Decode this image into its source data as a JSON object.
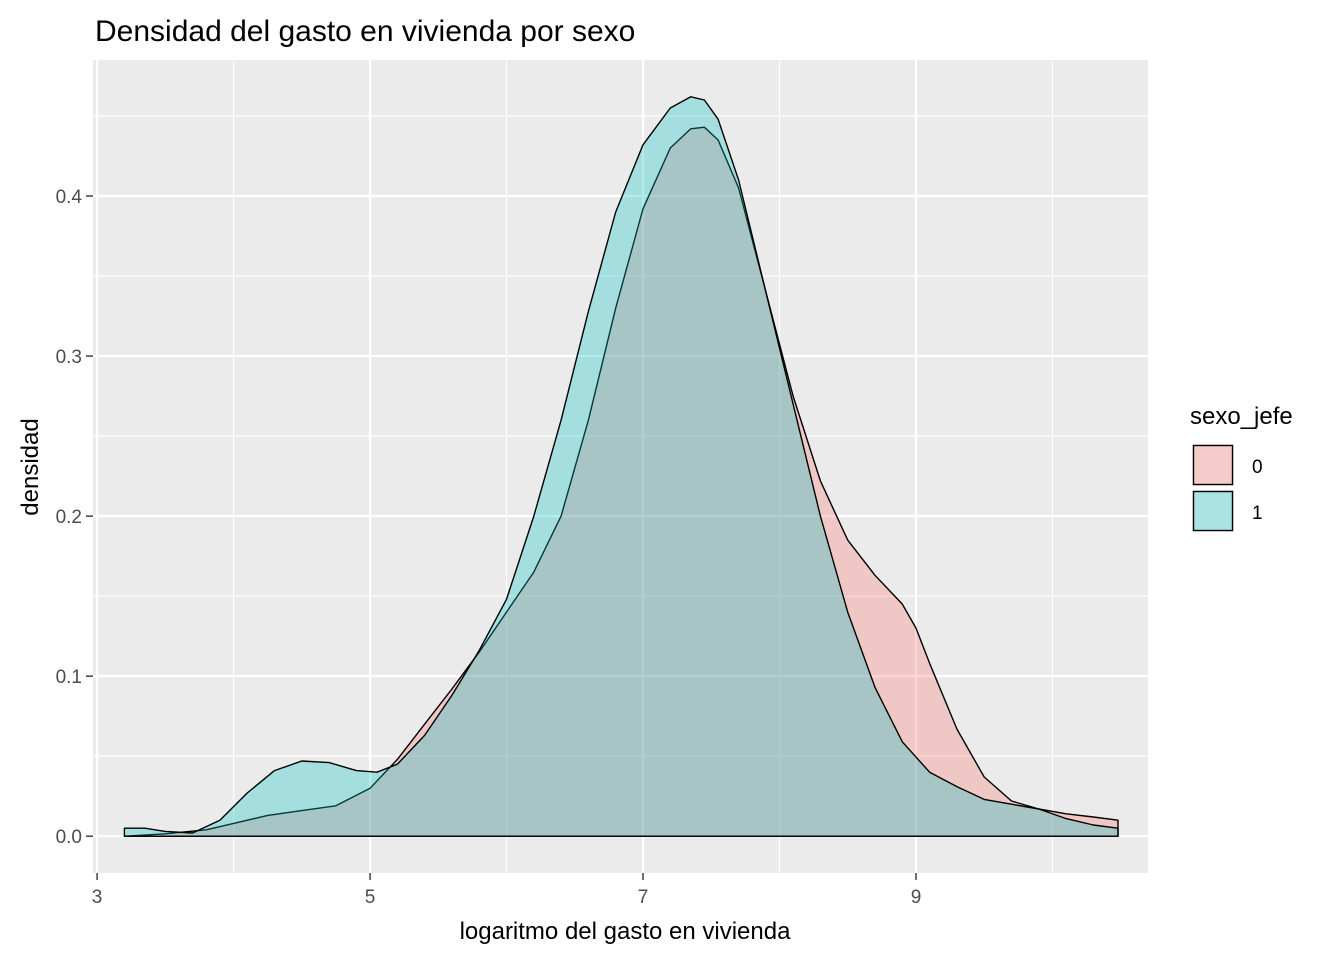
{
  "chart_data": {
    "type": "area",
    "subtype": "density",
    "title": "Densidad del gasto en vivienda por sexo",
    "xlabel": "logaritmo del gasto en vivienda",
    "ylabel": "densidad",
    "xlim": [
      2.97,
      10.7
    ],
    "ylim": [
      -0.023,
      0.485
    ],
    "x_ticks": [
      3,
      5,
      7,
      9
    ],
    "x_tick_labels": [
      "3",
      "5",
      "7",
      "9"
    ],
    "y_ticks": [
      0.0,
      0.1,
      0.2,
      0.3,
      0.4
    ],
    "y_tick_labels": [
      "0.0",
      "0.1",
      "0.2",
      "0.3",
      "0.4"
    ],
    "grid": true,
    "legend": {
      "title": "sexo_jefe",
      "position": "right"
    },
    "series": [
      {
        "name": "0",
        "color": "#F8766D",
        "x": [
          3.2,
          3.5,
          3.8,
          4.0,
          4.25,
          4.5,
          4.75,
          5.0,
          5.2,
          5.4,
          5.6,
          5.8,
          6.0,
          6.2,
          6.4,
          6.6,
          6.8,
          7.0,
          7.2,
          7.35,
          7.45,
          7.55,
          7.7,
          7.9,
          8.1,
          8.3,
          8.5,
          8.7,
          8.9,
          9.0,
          9.1,
          9.3,
          9.5,
          9.7,
          9.9,
          10.1,
          10.3,
          10.48
        ],
        "y": [
          0.0,
          0.0015,
          0.004,
          0.008,
          0.013,
          0.016,
          0.019,
          0.03,
          0.048,
          0.07,
          0.092,
          0.115,
          0.14,
          0.165,
          0.2,
          0.26,
          0.33,
          0.392,
          0.43,
          0.442,
          0.443,
          0.435,
          0.405,
          0.34,
          0.275,
          0.222,
          0.185,
          0.163,
          0.145,
          0.13,
          0.108,
          0.067,
          0.037,
          0.022,
          0.017,
          0.014,
          0.012,
          0.01
        ]
      },
      {
        "name": "1",
        "color": "#00BFC4",
        "x": [
          3.2,
          3.35,
          3.5,
          3.7,
          3.9,
          4.1,
          4.3,
          4.5,
          4.7,
          4.9,
          5.05,
          5.2,
          5.4,
          5.6,
          5.8,
          6.0,
          6.2,
          6.4,
          6.6,
          6.8,
          7.0,
          7.2,
          7.35,
          7.45,
          7.55,
          7.7,
          7.9,
          8.1,
          8.3,
          8.5,
          8.7,
          8.9,
          9.1,
          9.3,
          9.5,
          9.7,
          9.9,
          10.1,
          10.3,
          10.48
        ],
        "y": [
          0.005,
          0.005,
          0.003,
          0.002,
          0.01,
          0.027,
          0.041,
          0.047,
          0.046,
          0.041,
          0.04,
          0.045,
          0.063,
          0.088,
          0.116,
          0.148,
          0.2,
          0.26,
          0.328,
          0.39,
          0.432,
          0.455,
          0.462,
          0.46,
          0.448,
          0.41,
          0.34,
          0.27,
          0.2,
          0.14,
          0.093,
          0.059,
          0.04,
          0.031,
          0.023,
          0.02,
          0.017,
          0.011,
          0.007,
          0.005
        ]
      }
    ]
  }
}
